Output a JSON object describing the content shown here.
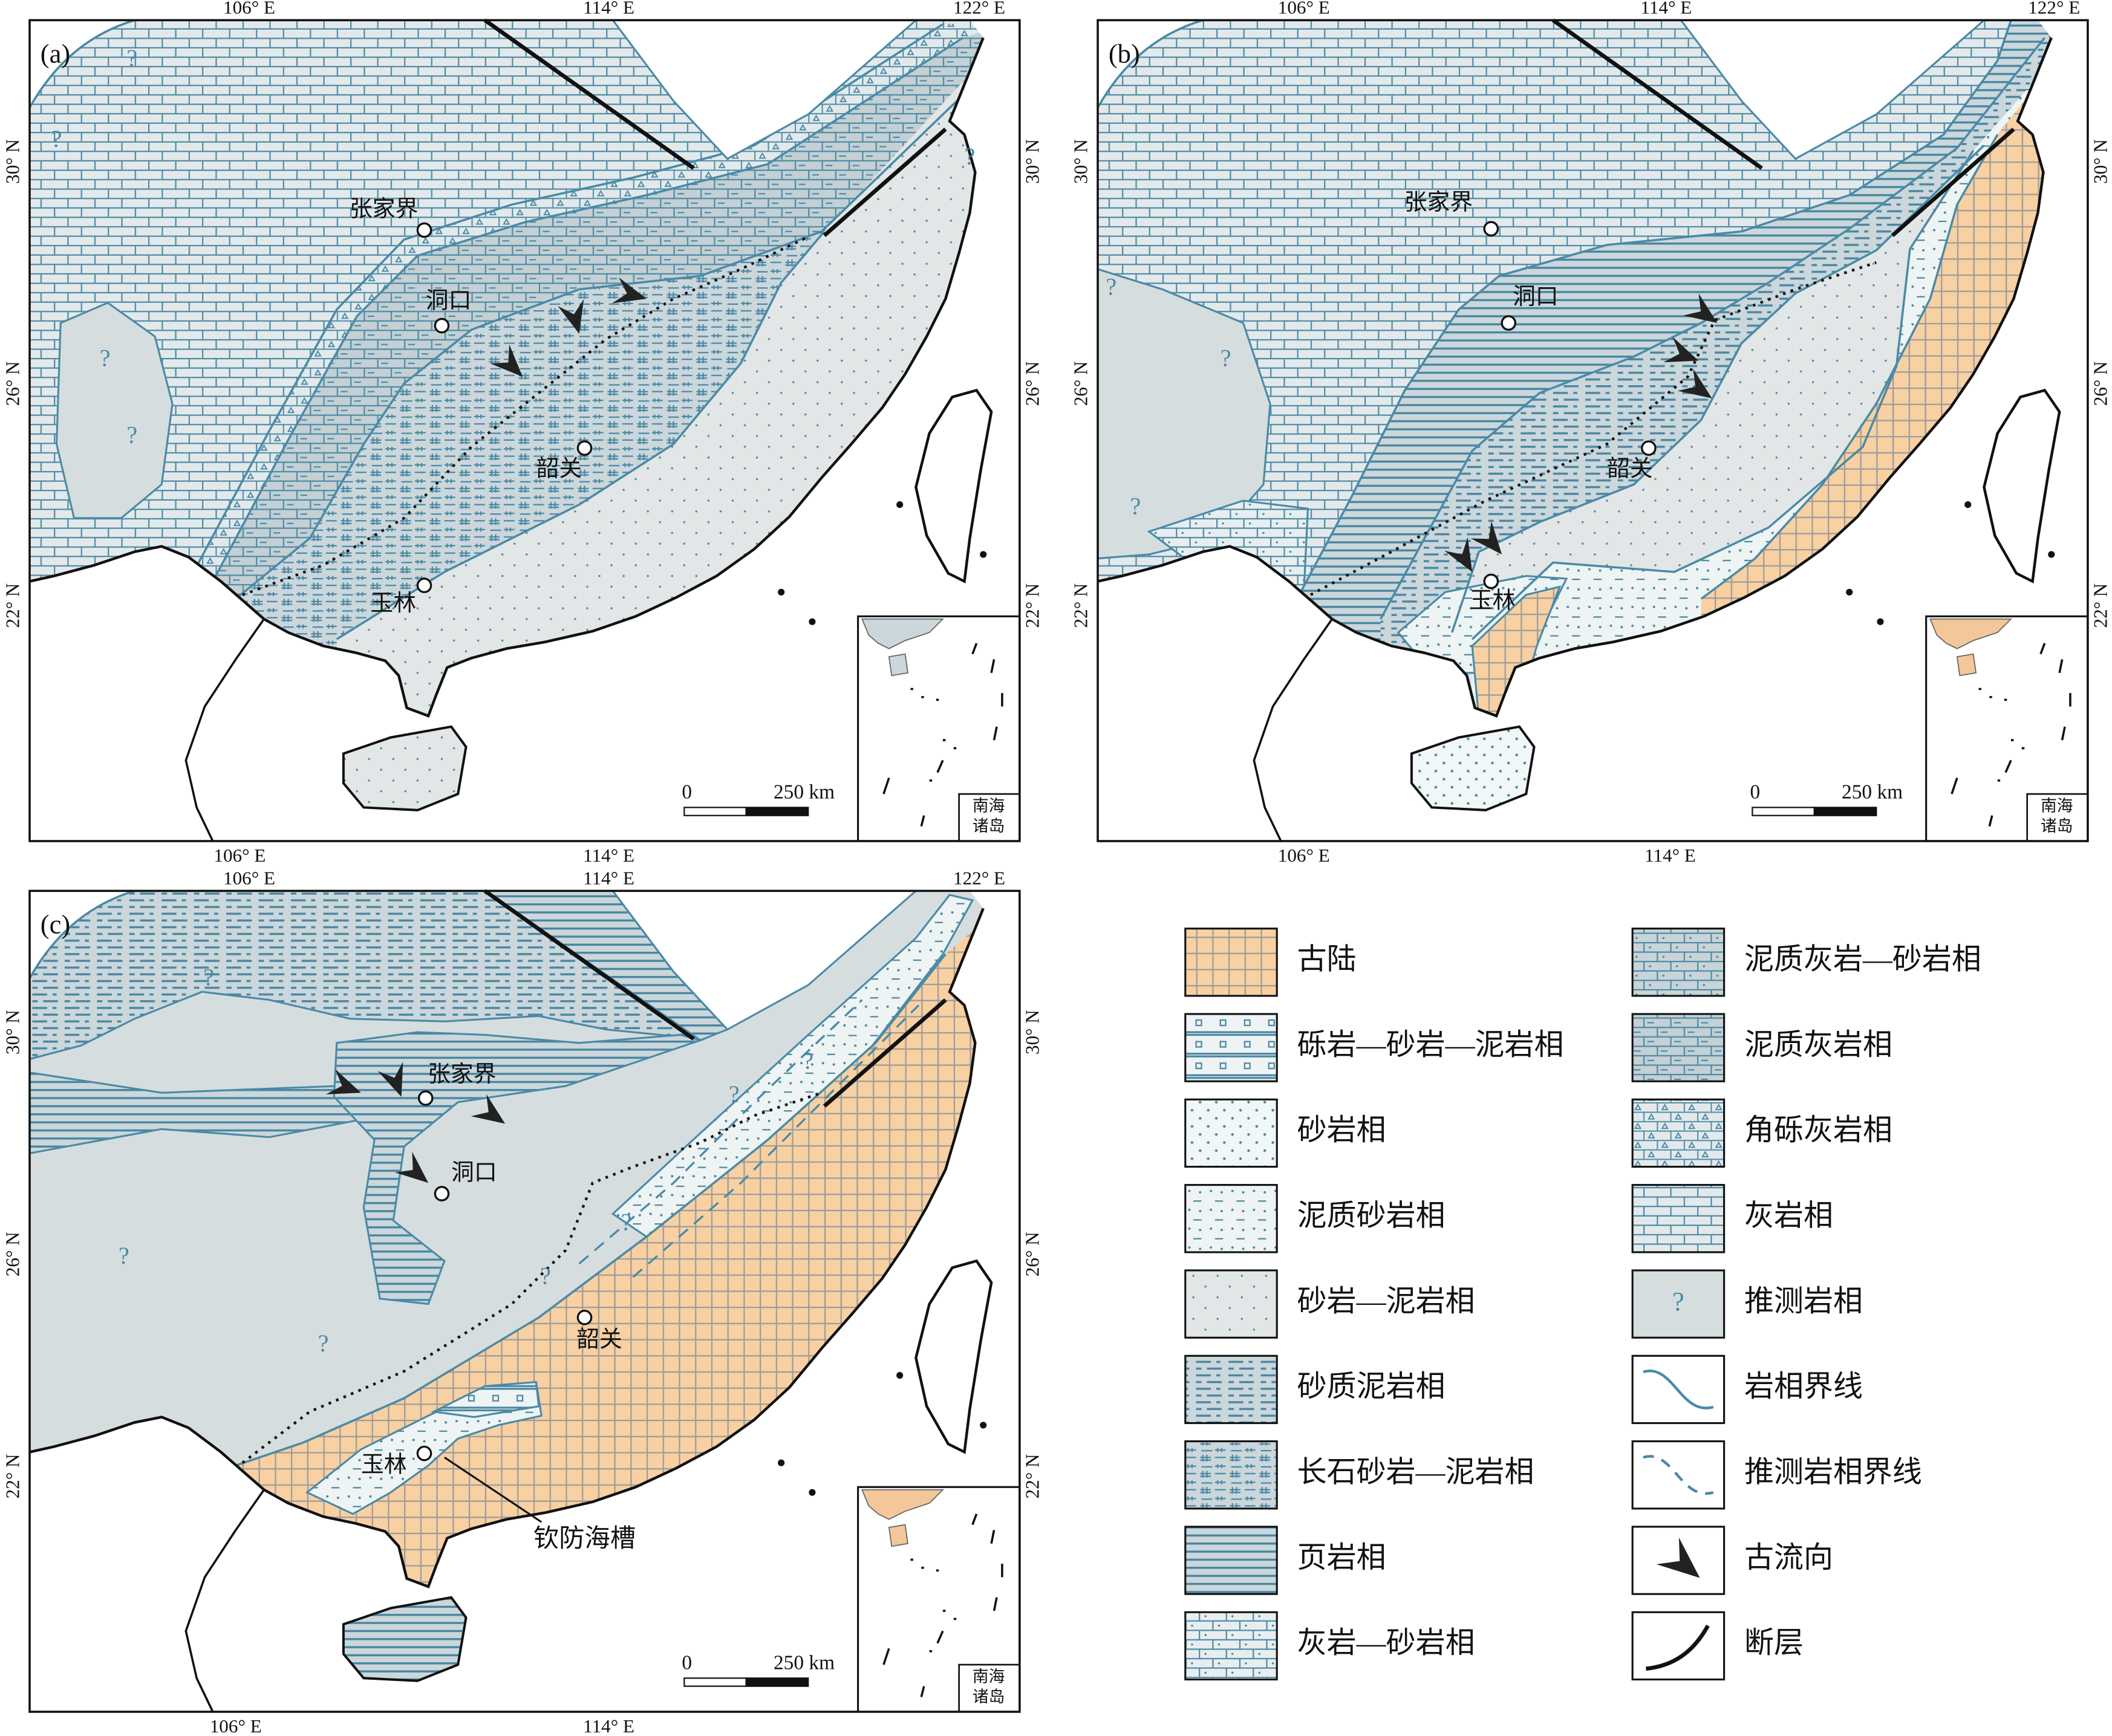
{
  "panels": [
    {
      "label": "(a)",
      "lon_top": [
        "106° E",
        "114° E",
        "122° E"
      ],
      "lon_bottom": [
        "106° E",
        "114° E"
      ],
      "lat_left": [
        "30° N",
        "26° N",
        "22° N"
      ],
      "lat_right": [
        "30° N",
        "26° N",
        "22° N"
      ],
      "cities": [
        "张家界",
        "洞口",
        "韶关",
        "玉林"
      ],
      "uncertain": [
        "?",
        "?",
        "?",
        "?",
        "?"
      ],
      "scale": [
        "0",
        "250 km"
      ],
      "inset": [
        "南海",
        "诸岛"
      ]
    },
    {
      "label": "(b)",
      "lon_top": [
        "106° E",
        "114° E",
        "122° E"
      ],
      "lon_bottom": [
        "106° E",
        "114° E"
      ],
      "lat_left": [
        "30° N",
        "26° N",
        "22° N"
      ],
      "lat_right": [
        "30° N",
        "26° N",
        "22° N"
      ],
      "cities": [
        "张家界",
        "洞口",
        "韶关",
        "玉林"
      ],
      "uncertain": [
        "?",
        "?",
        "?"
      ],
      "scale": [
        "0",
        "250 km"
      ],
      "inset": [
        "南海",
        "诸岛"
      ]
    },
    {
      "label": "(c)",
      "lon_top": [
        "106° E",
        "114° E",
        "122° E"
      ],
      "lon_bottom": [
        "106° E",
        "114° E"
      ],
      "lat_left": [
        "30° N",
        "26° N",
        "22° N"
      ],
      "lat_right": [
        "30° N",
        "26° N",
        "22° N"
      ],
      "cities": [
        "张家界",
        "洞口",
        "韶关",
        "玉林"
      ],
      "uncertain": [
        "?",
        "?",
        "?",
        "?",
        "?",
        "?",
        "?"
      ],
      "scale": [
        "0",
        "250 km"
      ],
      "inset": [
        "南海",
        "诸岛"
      ],
      "annotation": "钦防海槽"
    }
  ],
  "legend": [
    {
      "label": "古陆"
    },
    {
      "label": "砾岩—砂岩—泥岩相"
    },
    {
      "label": "砂岩相"
    },
    {
      "label": "泥质砂岩相"
    },
    {
      "label": "砂岩—泥岩相"
    },
    {
      "label": "砂质泥岩相"
    },
    {
      "label": "长石砂岩—泥岩相"
    },
    {
      "label": "页岩相"
    },
    {
      "label": "灰岩—砂岩相"
    },
    {
      "label": "泥质灰岩—砂岩相"
    },
    {
      "label": "泥质灰岩相"
    },
    {
      "label": "角砾灰岩相"
    },
    {
      "label": "灰岩相"
    },
    {
      "label": "推测岩相",
      "symbol": "?"
    },
    {
      "label": "岩相界线"
    },
    {
      "label": "推测岩相界线"
    },
    {
      "label": "古流向"
    },
    {
      "label": "断层"
    }
  ]
}
